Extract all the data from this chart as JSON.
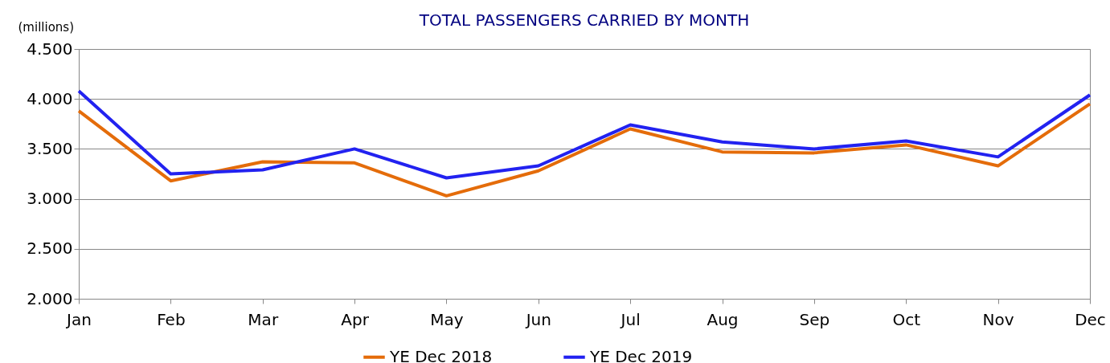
{
  "chart_data": {
    "type": "line",
    "title": "TOTAL PASSENGERS CARRIED BY MONTH",
    "ylabel": "(millions)",
    "categories": [
      "Jan",
      "Feb",
      "Mar",
      "Apr",
      "May",
      "Jun",
      "Jul",
      "Aug",
      "Sep",
      "Oct",
      "Nov",
      "Dec"
    ],
    "series": [
      {
        "name": "YE Dec 2018",
        "color": "#e46c0a",
        "values": [
          3.88,
          3.18,
          3.37,
          3.36,
          3.03,
          3.28,
          3.7,
          3.47,
          3.46,
          3.54,
          3.33,
          3.95
        ]
      },
      {
        "name": "YE Dec 2019",
        "color": "#2222f0",
        "values": [
          4.08,
          3.25,
          3.29,
          3.5,
          3.21,
          3.33,
          3.74,
          3.57,
          3.5,
          3.58,
          3.42,
          4.04
        ]
      }
    ],
    "ylim": [
      2.0,
      4.5
    ],
    "yticks": [
      {
        "value": 2.0,
        "label": "2.000"
      },
      {
        "value": 2.5,
        "label": "2.500"
      },
      {
        "value": 3.0,
        "label": "3.000"
      },
      {
        "value": 3.5,
        "label": "3.500"
      },
      {
        "value": 4.0,
        "label": "4.000"
      },
      {
        "value": 4.5,
        "label": "4.500"
      }
    ],
    "grid": "y",
    "legend": "bottom"
  }
}
